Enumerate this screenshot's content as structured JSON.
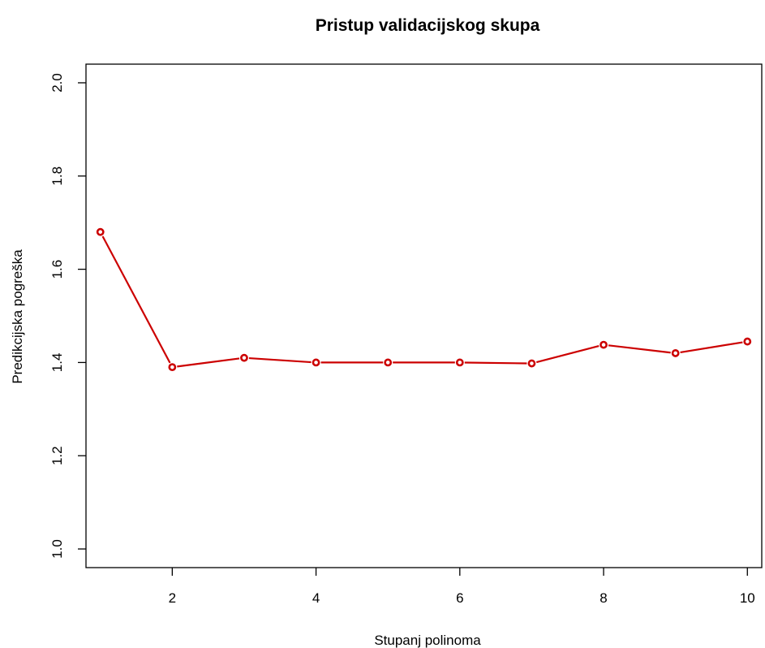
{
  "chart_data": {
    "type": "line",
    "title": "Pristup validacijskog skupa",
    "xlabel": "Stupanj polinoma",
    "ylabel": "Predikcijska pogreška",
    "xlim": [
      0.8,
      10.2
    ],
    "ylim": [
      0.96,
      2.04
    ],
    "xticks": [
      2,
      4,
      6,
      8,
      10
    ],
    "yticks": [
      1.0,
      1.2,
      1.4,
      1.6,
      1.8,
      2.0
    ],
    "ytick_labels": [
      "1.0",
      "1.2",
      "1.4",
      "1.6",
      "1.8",
      "2.0"
    ],
    "grid": false,
    "color": "#cc0000",
    "series": [
      {
        "x": [
          1,
          2,
          3,
          4,
          5,
          6,
          7,
          8,
          9,
          10
        ],
        "values": [
          1.68,
          1.39,
          1.41,
          1.4,
          1.4,
          1.4,
          1.398,
          1.438,
          1.42,
          1.445
        ]
      }
    ]
  }
}
